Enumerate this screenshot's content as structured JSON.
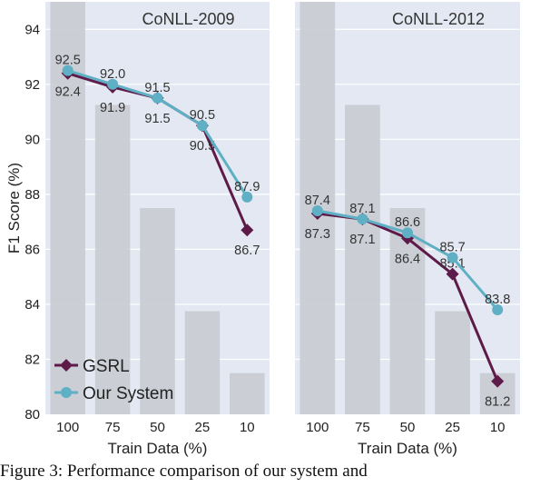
{
  "caption": "Figure 3: Performance comparison of our system and",
  "chart_data": [
    {
      "type": "line",
      "title": "CoNLL-2009",
      "xlabel": "Train Data (%)",
      "ylabel": "F1 Score (%)",
      "ylim": [
        80,
        95
      ],
      "yticks": [
        80,
        82,
        84,
        86,
        88,
        90,
        92,
        94
      ],
      "categories": [
        "100",
        "75",
        "50",
        "25",
        "10"
      ],
      "bars": [
        100,
        75,
        50,
        25,
        10
      ],
      "series": [
        {
          "name": "GSRL",
          "values": [
            92.4,
            91.9,
            91.5,
            90.5,
            86.7
          ],
          "color": "#5e1a48",
          "marker": "diamond"
        },
        {
          "name": "Our System",
          "values": [
            92.5,
            92.0,
            91.5,
            90.5,
            87.9
          ],
          "color": "#5fb0c4",
          "marker": "circle"
        }
      ],
      "grid": true,
      "legend": "bottom-left"
    },
    {
      "type": "line",
      "title": "CoNLL-2012",
      "xlabel": "Train Data (%)",
      "ylim": [
        80,
        95
      ],
      "categories": [
        "100",
        "75",
        "50",
        "25",
        "10"
      ],
      "bars": [
        100,
        75,
        50,
        25,
        10
      ],
      "series": [
        {
          "name": "GSRL",
          "values": [
            87.3,
            87.1,
            86.4,
            85.1,
            81.2
          ],
          "color": "#5e1a48",
          "marker": "diamond"
        },
        {
          "name": "Our System",
          "values": [
            87.4,
            87.1,
            86.6,
            85.7,
            83.8
          ],
          "color": "#5fb0c4",
          "marker": "circle"
        }
      ],
      "grid": true
    }
  ]
}
